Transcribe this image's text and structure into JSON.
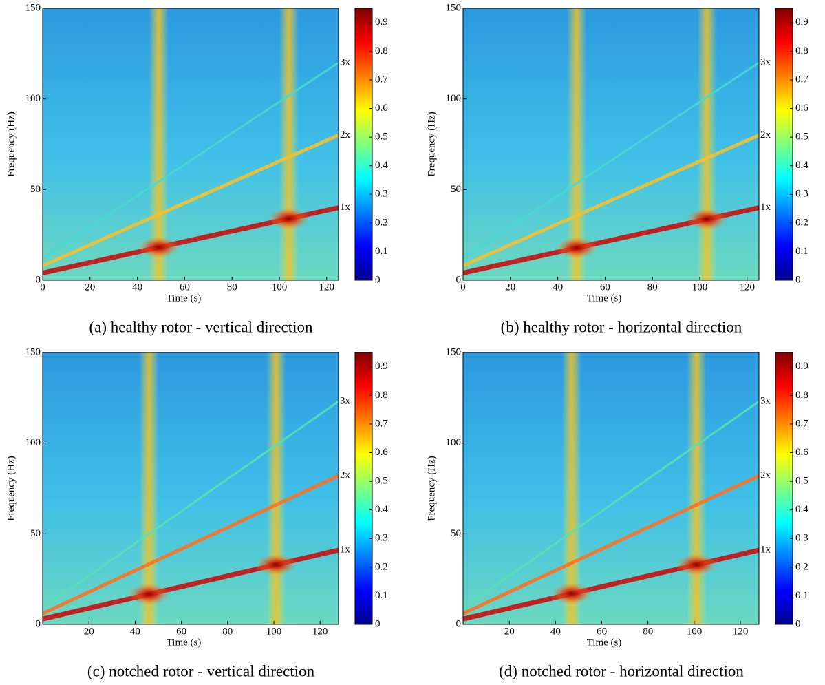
{
  "chart_data": [
    {
      "type": "spectrogram",
      "caption": "(a) healthy rotor - vertical direction",
      "x_label": "Time (s)",
      "y_label": "Frequency (Hz)",
      "xlim": [
        0,
        125
      ],
      "xticks": [
        0,
        20,
        40,
        60,
        80,
        100,
        120
      ],
      "ylim": [
        0,
        150
      ],
      "yticks": [
        0,
        50,
        100,
        150
      ],
      "clim": [
        0,
        0.95
      ],
      "cticks": [
        0,
        0.1,
        0.2,
        0.3,
        0.4,
        0.5,
        0.6,
        0.7,
        0.8,
        0.9
      ],
      "resonance_x": [
        49,
        104
      ],
      "x": [
        0,
        125
      ],
      "series": [
        {
          "name": "1x",
          "color": "#c81010",
          "values": [
            4,
            40
          ]
        },
        {
          "name": "2x",
          "color": "#f4c030",
          "values": [
            8,
            80
          ]
        },
        {
          "name": "3x",
          "color": "#48d8d0",
          "values": [
            12,
            120
          ]
        }
      ]
    },
    {
      "type": "spectrogram",
      "caption": "(b) healthy rotor - horizontal direction",
      "x_label": "Time (s)",
      "y_label": "Frequency (Hz)",
      "xlim": [
        0,
        125
      ],
      "xticks": [
        0,
        20,
        40,
        60,
        80,
        100,
        120
      ],
      "ylim": [
        0,
        150
      ],
      "yticks": [
        0,
        50,
        100,
        150
      ],
      "clim": [
        0,
        0.95
      ],
      "cticks": [
        0,
        0.1,
        0.2,
        0.3,
        0.4,
        0.5,
        0.6,
        0.7,
        0.8,
        0.9
      ],
      "resonance_x": [
        48,
        103
      ],
      "x": [
        0,
        125
      ],
      "series": [
        {
          "name": "1x",
          "color": "#c81010",
          "values": [
            4,
            40
          ]
        },
        {
          "name": "2x",
          "color": "#f4c030",
          "values": [
            8,
            80
          ]
        },
        {
          "name": "3x",
          "color": "#48d8d0",
          "values": [
            12,
            120
          ]
        }
      ]
    },
    {
      "type": "spectrogram",
      "caption": "(c) notched rotor - vertical direction",
      "x_label": "Time (s)",
      "y_label": "Frequency (Hz)",
      "xlim": [
        0,
        128
      ],
      "xticks": [
        20,
        40,
        60,
        80,
        100,
        120
      ],
      "ylim": [
        0,
        150
      ],
      "yticks": [
        0,
        50,
        100,
        150
      ],
      "clim": [
        0,
        0.95
      ],
      "cticks": [
        0,
        0.1,
        0.2,
        0.3,
        0.4,
        0.5,
        0.6,
        0.7,
        0.8,
        0.9
      ],
      "resonance_x": [
        46,
        101
      ],
      "x": [
        0,
        128
      ],
      "series": [
        {
          "name": "1x",
          "color": "#c81010",
          "values": [
            3,
            41
          ]
        },
        {
          "name": "2x",
          "color": "#ff7020",
          "values": [
            6,
            82
          ]
        },
        {
          "name": "3x",
          "color": "#58e0b0",
          "values": [
            9,
            123
          ]
        }
      ]
    },
    {
      "type": "spectrogram",
      "caption": "(d) notched rotor - horizontal direction",
      "x_label": "Time (s)",
      "y_label": "Frequency (Hz)",
      "xlim": [
        0,
        128
      ],
      "xticks": [
        20,
        40,
        60,
        80,
        100,
        120
      ],
      "ylim": [
        0,
        150
      ],
      "yticks": [
        0,
        50,
        100,
        150
      ],
      "clim": [
        0,
        0.95
      ],
      "cticks": [
        0,
        0.1,
        0.2,
        0.3,
        0.4,
        0.5,
        0.6,
        0.7,
        0.8,
        0.9
      ],
      "resonance_x": [
        47,
        101
      ],
      "x": [
        0,
        128
      ],
      "series": [
        {
          "name": "1x",
          "color": "#c81010",
          "values": [
            3,
            41
          ]
        },
        {
          "name": "2x",
          "color": "#ff7020",
          "values": [
            6,
            82
          ]
        },
        {
          "name": "3x",
          "color": "#58e0b0",
          "values": [
            9,
            123
          ]
        }
      ]
    }
  ]
}
